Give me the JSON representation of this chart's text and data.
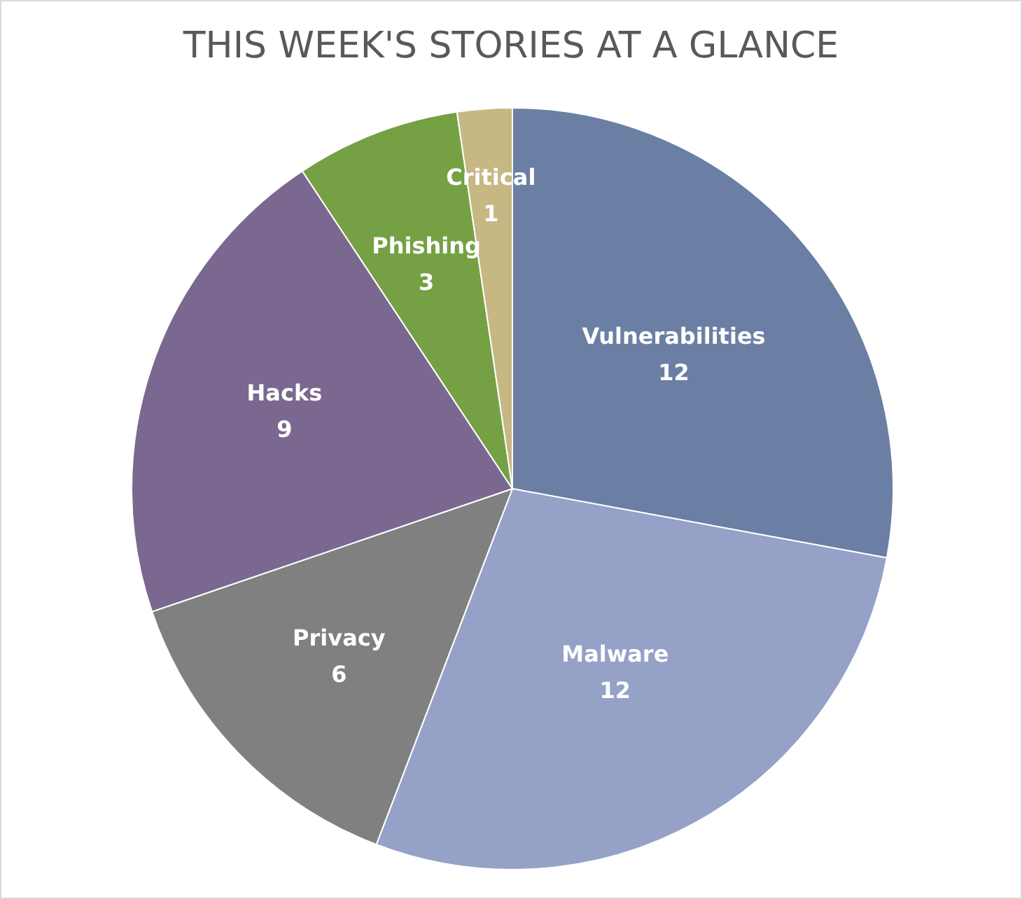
{
  "chart_data": {
    "type": "pie",
    "title": "THIS WEEK'S STORIES AT A GLANCE",
    "categories": [
      "Vulnerabilities",
      "Malware",
      "Privacy",
      "Hacks",
      "Phishing",
      "Critical"
    ],
    "values": [
      12,
      12,
      6,
      9,
      3,
      1
    ],
    "colors": [
      "#6a7fa3",
      "#95a1c6",
      "#808080",
      "#7b6891",
      "#76a044",
      "#c6b783"
    ],
    "data_labels": true,
    "legend": false
  }
}
